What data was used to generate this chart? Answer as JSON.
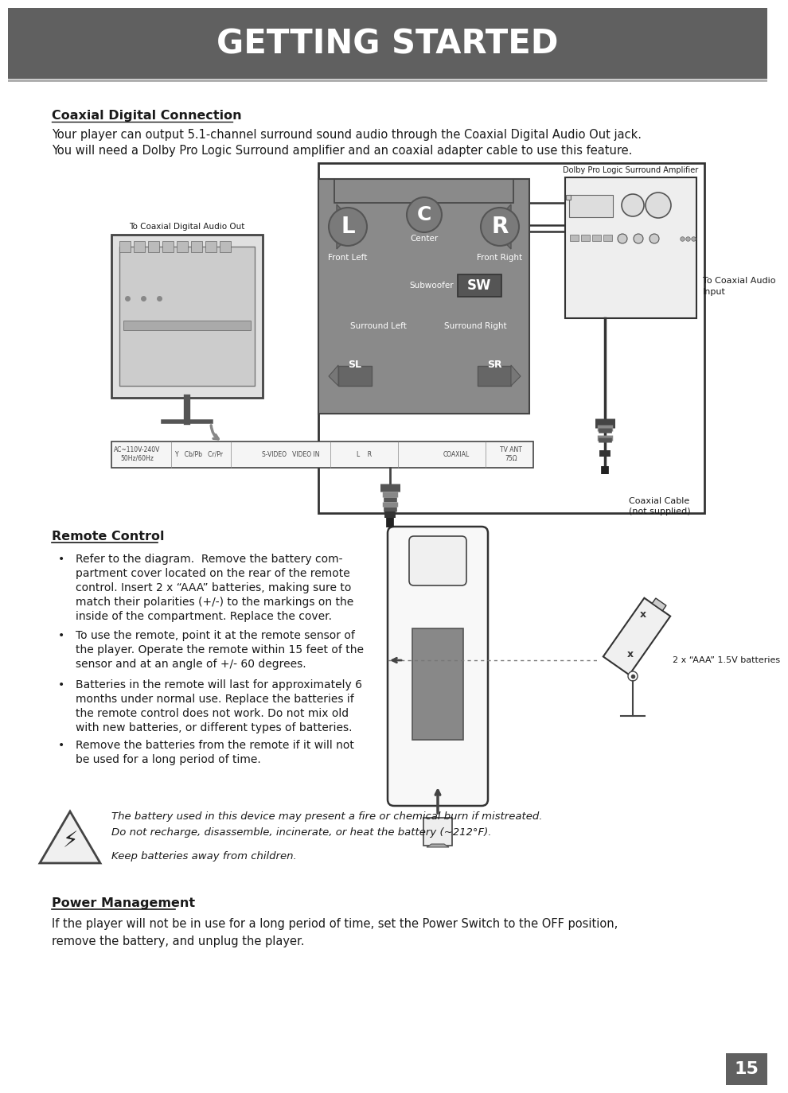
{
  "header_bg_color": "#606060",
  "header_text": "GETTING STARTED",
  "header_text_color": "#ffffff",
  "page_bg_color": "#ffffff",
  "body_text_color": "#1a1a1a",
  "page_number": "15",
  "page_number_bg": "#606060",
  "page_number_color": "#ffffff",
  "section1_title": "Coaxial Digital Connection",
  "section1_body_line1": "Your player can output 5.1-channel surround sound audio through the Coaxial Digital Audio Out jack.",
  "section1_body_line2": "You will need a Dolby Pro Logic Surround amplifier and an coaxial adapter cable to use this feature.",
  "section2_title": "Remote Control",
  "bullet1_line1": "Refer to the diagram.  Remove the battery com-",
  "bullet1_line2": "partment cover located on the rear of the remote",
  "bullet1_line3": "control. Insert 2 x “AAA” batteries, making sure to",
  "bullet1_line4": "match their polarities (+/-) to the markings on the",
  "bullet1_line5": "inside of the compartment. Replace the cover.",
  "bullet2_line1": "To use the remote, point it at the remote sensor of",
  "bullet2_line2": "the player. Operate the remote within 15 feet of the",
  "bullet2_line3": "sensor and at an angle of +/- 60 degrees.",
  "bullet3_line1": "Batteries in the remote will last for approximately 6",
  "bullet3_line2": "months under normal use. Replace the batteries if",
  "bullet3_line3": "the remote control does not work. Do not mix old",
  "bullet3_line4": "with new batteries, or different types of batteries.",
  "bullet4_line1": "Remove the batteries from the remote if it will not",
  "bullet4_line2": "be used for a long period of time.",
  "battery_label": "2 x “AAA” 1.5V batteries",
  "warn_line1": "The battery used in this device may present a fire or chemical burn if mistreated.",
  "warn_line2": "Do not recharge, disassemble, incinerate, or heat the battery (~212°F).",
  "warn_line3": "Keep batteries away from children.",
  "section3_title": "Power Management",
  "section3_line1": "If the player will not be in use for a long period of time, set the Power Switch to the OFF position,",
  "section3_line2": "remove the battery, and unplug the player.",
  "diag_label_dolby": "Dolby Pro Logic Surround Amplifier",
  "diag_label_coax_out": "To Coaxial Digital Audio Out",
  "diag_label_coax_in1": "To Coaxial Audio",
  "diag_label_coax_in2": "Input",
  "diag_label_cable1": "Coaxial Cable",
  "diag_label_cable2": "(not supplied)",
  "diag_label_front_left": "Front Left",
  "diag_label_front_right": "Front Right",
  "diag_label_center": "Center",
  "diag_label_subwoofer": "Subwoofer",
  "diag_label_surround_left": "Surround Left",
  "diag_label_surround_right": "Surround Right"
}
